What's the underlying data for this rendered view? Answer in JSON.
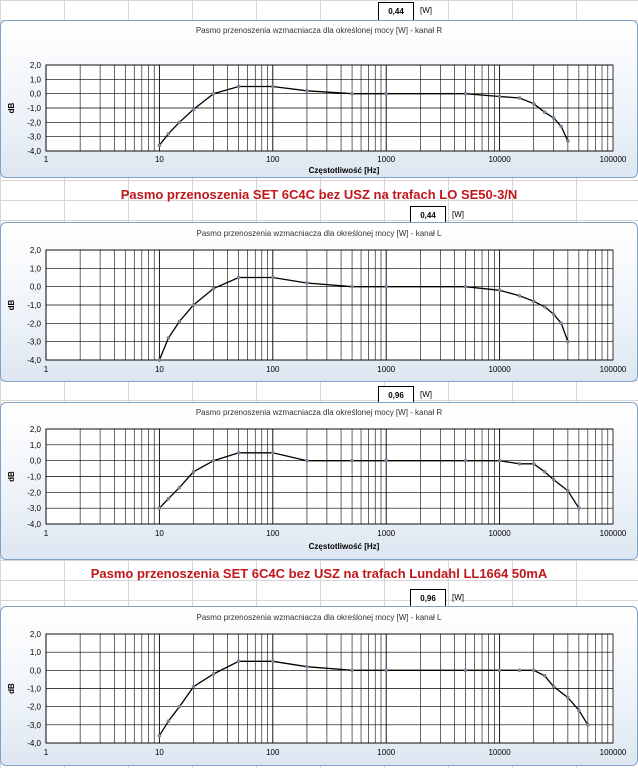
{
  "headings": [
    "Pasmo przenoszenia SET 6C4C bez USZ na trafach LO SE50-3/N",
    "Pasmo przenoszenia SET 6C4C bez USZ na trafach Lundahl LL1664 50mA"
  ],
  "power_labels": [
    {
      "value": "0,44",
      "unit": "[W]"
    },
    {
      "value": "0,44",
      "unit": "[W]"
    },
    {
      "value": "0,96",
      "unit": "[W]"
    },
    {
      "value": "0,96",
      "unit": "[W]"
    }
  ],
  "chart_data": [
    {
      "type": "line",
      "title": "Pasmo przenoszenia wzmacniacza dla określonej mocy [W] - kanał R",
      "xlabel": "Częstotliwość  [Hz]",
      "ylabel": "dB",
      "x_scale": "log",
      "xlim": [
        1,
        100000
      ],
      "ylim": [
        -4,
        2
      ],
      "x_ticks": [
        "1",
        "10",
        "100",
        "1000",
        "10000",
        "100000"
      ],
      "y_ticks": [
        "2,0",
        "1,0",
        "0,0",
        "-1,0",
        "-2,0",
        "-3,0",
        "-4,0"
      ],
      "grid": true,
      "x": [
        10,
        12,
        15,
        20,
        30,
        50,
        100,
        200,
        500,
        1000,
        5000,
        10000,
        15000,
        20000,
        25000,
        30000,
        35000,
        40000
      ],
      "y": [
        -3.6,
        -2.8,
        -2.0,
        -1.1,
        0.0,
        0.5,
        0.5,
        0.2,
        0.0,
        0.0,
        0.0,
        -0.2,
        -0.3,
        -0.7,
        -1.3,
        -1.7,
        -2.3,
        -3.3
      ]
    },
    {
      "type": "line",
      "title": "Pasmo przenoszenia wzmacniacza dla określonej mocy [W] - kanał L",
      "xlabel": "",
      "ylabel": "dB",
      "x_scale": "log",
      "xlim": [
        1,
        100000
      ],
      "ylim": [
        -4,
        2
      ],
      "x_ticks": [
        "1",
        "10",
        "100",
        "1000",
        "10000",
        "100000"
      ],
      "y_ticks": [
        "2,0",
        "1,0",
        "0,0",
        "-1,0",
        "-2,0",
        "-3,0",
        "-4,0"
      ],
      "grid": true,
      "x": [
        10,
        12,
        15,
        20,
        30,
        50,
        100,
        200,
        500,
        1000,
        5000,
        10000,
        15000,
        20000,
        25000,
        30000,
        35000,
        40000
      ],
      "y": [
        -4.0,
        -2.8,
        -1.9,
        -1.0,
        -0.1,
        0.5,
        0.5,
        0.2,
        0.0,
        0.0,
        0.0,
        -0.2,
        -0.5,
        -0.8,
        -1.1,
        -1.5,
        -2.0,
        -3.0
      ]
    },
    {
      "type": "line",
      "title": "Pasmo przenoszenia wzmacniacza dla określonej mocy [W] - kanał R",
      "xlabel": "Częstotliwość  [Hz]",
      "ylabel": "dB",
      "x_scale": "log",
      "xlim": [
        1,
        100000
      ],
      "ylim": [
        -4,
        2
      ],
      "x_ticks": [
        "1",
        "10",
        "100",
        "1000",
        "10000",
        "100000"
      ],
      "y_ticks": [
        "2,0",
        "1,0",
        "0,0",
        "-1,0",
        "-2,0",
        "-3,0",
        "-4,0"
      ],
      "grid": true,
      "x": [
        10,
        12,
        15,
        20,
        30,
        50,
        100,
        200,
        500,
        1000,
        5000,
        10000,
        15000,
        20000,
        25000,
        30000,
        40000,
        50000
      ],
      "y": [
        -3.0,
        -2.4,
        -1.7,
        -0.7,
        0.0,
        0.5,
        0.5,
        0.0,
        0.0,
        0.0,
        0.0,
        0.0,
        -0.2,
        -0.2,
        -0.7,
        -1.2,
        -1.9,
        -3.0
      ]
    },
    {
      "type": "line",
      "title": "Pasmo przenoszenia wzmacniacza dla określonej mocy [W] - kanał L",
      "xlabel": "",
      "ylabel": "dB",
      "x_scale": "log",
      "xlim": [
        1,
        100000
      ],
      "ylim": [
        -4,
        2
      ],
      "x_ticks": [
        "1",
        "10",
        "100",
        "1000",
        "10000",
        "100000"
      ],
      "y_ticks": [
        "2,0",
        "1,0",
        "0,0",
        "-1,0",
        "-2,0",
        "-3,0",
        "-4,0"
      ],
      "grid": true,
      "x": [
        10,
        12,
        15,
        20,
        30,
        50,
        100,
        200,
        500,
        1000,
        5000,
        10000,
        15000,
        20000,
        25000,
        30000,
        40000,
        50000,
        60000
      ],
      "y": [
        -3.6,
        -2.8,
        -2.0,
        -0.9,
        -0.2,
        0.5,
        0.5,
        0.2,
        0.0,
        0.0,
        0.0,
        0.0,
        0.0,
        0.0,
        -0.3,
        -0.9,
        -1.5,
        -2.2,
        -3.0
      ]
    }
  ]
}
